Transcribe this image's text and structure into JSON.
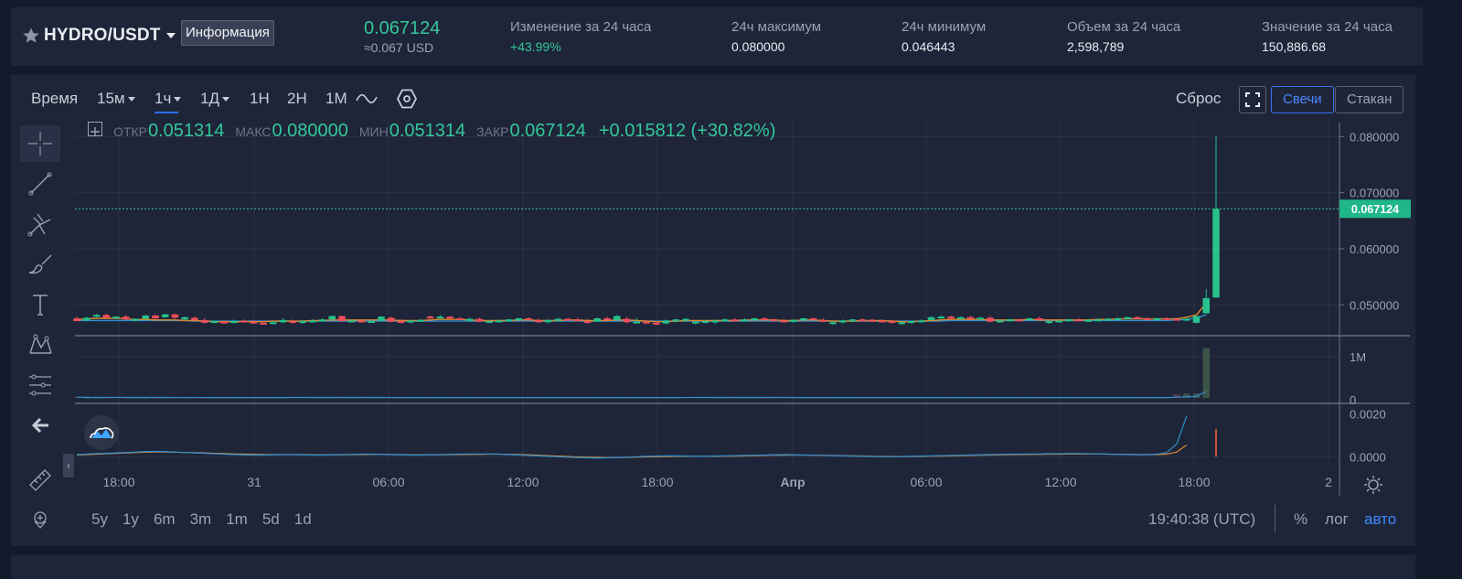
{
  "header": {
    "pair": "HYDRO/USDT",
    "info_button": "Информация",
    "last_price": "0.067124",
    "last_price_usd": "≈0.067 USD",
    "stats": [
      {
        "label": "Изменение за 24 часа",
        "value": "+43.99%",
        "color": "#34c79a"
      },
      {
        "label": "24ч максимум",
        "value": "0.080000",
        "color": "#e9ecf2"
      },
      {
        "label": "24ч минимум",
        "value": "0.046443",
        "color": "#e9ecf2"
      },
      {
        "label": "Объем за 24 часа",
        "value": "2,598,789",
        "color": "#e9ecf2"
      },
      {
        "label": "Значение за 24 часа",
        "value": "150,886.68",
        "color": "#e9ecf2"
      }
    ]
  },
  "toolbar": {
    "time_label": "Время",
    "intervals": [
      "15м",
      "1ч",
      "1Д",
      "1Н",
      "2Н",
      "1М"
    ],
    "active_interval": "1ч",
    "reset": "Сброс",
    "candles": "Свечи",
    "depth": "Стакан"
  },
  "ohlc": {
    "open_label": "ОТКР",
    "open": "0.051314",
    "high_label": "МАКС",
    "high": "0.080000",
    "low_label": "МИН",
    "low": "0.051314",
    "close_label": "ЗАКР",
    "close": "0.067124",
    "change": "+0.015812 (+30.82%)"
  },
  "price_axis": {
    "ticks": [
      "0.080000",
      "0.070000",
      "0.060000",
      "0.050000"
    ],
    "tick_values": [
      0.08,
      0.07,
      0.06,
      0.05
    ],
    "current": "0.067124",
    "current_value": 0.067124
  },
  "volume_axis": {
    "ticks": [
      "1M",
      "0"
    ]
  },
  "macd_axis": {
    "ticks": [
      "0.0020",
      "0.0000"
    ]
  },
  "time_axis": {
    "labels": [
      "18:00",
      "31",
      "06:00",
      "12:00",
      "18:00",
      "Апр",
      "06:00",
      "12:00",
      "18:00",
      "2"
    ]
  },
  "ranges": [
    "5y",
    "1y",
    "6m",
    "3m",
    "1m",
    "5d",
    "1d"
  ],
  "clock": "19:40:38 (UTC)",
  "bottom_options": {
    "percent": "%",
    "log": "лог",
    "auto": "авто"
  },
  "colors": {
    "up": "#26c28c",
    "down": "#f0505c",
    "accent": "#3b72f6",
    "grid": "#2a3146",
    "price_line": "#34c79a"
  },
  "chart_data": {
    "type": "candlestick",
    "interval": "1ч",
    "pair": "HYDRO/USDT",
    "ylim": [
      0.0445,
      0.0825
    ],
    "candles": [
      [
        0.0476,
        0.0479,
        0.0472,
        0.0471
      ],
      [
        0.0472,
        0.0479,
        0.0471,
        0.0477
      ],
      [
        0.0481,
        0.0484,
        0.0478,
        0.0482
      ],
      [
        0.0482,
        0.0484,
        0.0476,
        0.0477
      ],
      [
        0.0477,
        0.048,
        0.0475,
        0.0479
      ],
      [
        0.0479,
        0.0482,
        0.0472,
        0.0474
      ],
      [
        0.0473,
        0.0476,
        0.0471,
        0.0475
      ],
      [
        0.0475,
        0.0482,
        0.0474,
        0.0481
      ],
      [
        0.0481,
        0.0483,
        0.0474,
        0.0476
      ],
      [
        0.0478,
        0.0484,
        0.0477,
        0.0483
      ],
      [
        0.0483,
        0.0484,
        0.0475,
        0.0477
      ],
      [
        0.0474,
        0.0479,
        0.0472,
        0.0478
      ],
      [
        0.0477,
        0.0479,
        0.0471,
        0.0473
      ],
      [
        0.0473,
        0.0476,
        0.0467,
        0.0468
      ],
      [
        0.0468,
        0.0472,
        0.0467,
        0.0471
      ],
      [
        0.047,
        0.0472,
        0.0466,
        0.0468
      ],
      [
        0.0468,
        0.0474,
        0.0467,
        0.0471
      ],
      [
        0.0472,
        0.0474,
        0.0468,
        0.047
      ],
      [
        0.047,
        0.0473,
        0.0466,
        0.0468
      ],
      [
        0.0468,
        0.0471,
        0.0465,
        0.0467
      ],
      [
        0.0467,
        0.0471,
        0.0465,
        0.0469
      ],
      [
        0.0469,
        0.0476,
        0.0467,
        0.0473
      ],
      [
        0.0471,
        0.0474,
        0.0467,
        0.0469
      ],
      [
        0.0469,
        0.0473,
        0.0466,
        0.0471
      ],
      [
        0.0471,
        0.0474,
        0.0469,
        0.0472
      ],
      [
        0.0473,
        0.0476,
        0.047,
        0.0474
      ],
      [
        0.0474,
        0.0481,
        0.0473,
        0.048
      ],
      [
        0.048,
        0.0481,
        0.047,
        0.0471
      ],
      [
        0.0471,
        0.0474,
        0.0469,
        0.0472
      ],
      [
        0.0472,
        0.0474,
        0.0468,
        0.047
      ],
      [
        0.047,
        0.0473,
        0.0468,
        0.0471
      ],
      [
        0.0472,
        0.048,
        0.0471,
        0.0479
      ],
      [
        0.0477,
        0.0479,
        0.0469,
        0.047
      ],
      [
        0.0471,
        0.0474,
        0.0467,
        0.0469
      ],
      [
        0.0469,
        0.0473,
        0.0467,
        0.0472
      ],
      [
        0.0472,
        0.0475,
        0.047,
        0.0473
      ],
      [
        0.0479,
        0.0481,
        0.0477,
        0.0478
      ],
      [
        0.0478,
        0.0482,
        0.0476,
        0.0479
      ],
      [
        0.0479,
        0.048,
        0.0475,
        0.0476
      ],
      [
        0.0476,
        0.0479,
        0.0473,
        0.0475
      ],
      [
        0.0473,
        0.0477,
        0.0471,
        0.0475
      ],
      [
        0.0475,
        0.0477,
        0.0469,
        0.047
      ],
      [
        0.047,
        0.0473,
        0.0468,
        0.0471
      ],
      [
        0.0471,
        0.0474,
        0.0469,
        0.0472
      ],
      [
        0.0472,
        0.0475,
        0.047,
        0.0474
      ],
      [
        0.0474,
        0.0477,
        0.0472,
        0.0476
      ],
      [
        0.0476,
        0.0478,
        0.0472,
        0.0473
      ],
      [
        0.0473,
        0.0476,
        0.0468,
        0.0469
      ],
      [
        0.0469,
        0.0474,
        0.0467,
        0.0473
      ],
      [
        0.0473,
        0.0477,
        0.0471,
        0.0475
      ],
      [
        0.0475,
        0.0477,
        0.0472,
        0.0474
      ],
      [
        0.0474,
        0.0477,
        0.0471,
        0.0473
      ],
      [
        0.0471,
        0.0475,
        0.0466,
        0.047
      ],
      [
        0.047,
        0.0477,
        0.0469,
        0.0476
      ],
      [
        0.0476,
        0.0479,
        0.0471,
        0.0473
      ],
      [
        0.0473,
        0.0482,
        0.0472,
        0.048
      ],
      [
        0.0475,
        0.0479,
        0.0467,
        0.0469
      ],
      [
        0.0469,
        0.0476,
        0.0467,
        0.047
      ],
      [
        0.047,
        0.0473,
        0.0466,
        0.0468
      ],
      [
        0.0468,
        0.0471,
        0.0464,
        0.0467
      ],
      [
        0.0467,
        0.0474,
        0.0465,
        0.0472
      ],
      [
        0.0472,
        0.0475,
        0.0469,
        0.0474
      ],
      [
        0.0474,
        0.0477,
        0.047,
        0.0475
      ],
      [
        0.0468,
        0.0471,
        0.0465,
        0.047
      ],
      [
        0.047,
        0.0473,
        0.0467,
        0.0471
      ],
      [
        0.0469,
        0.0474,
        0.0466,
        0.0472
      ],
      [
        0.0472,
        0.0476,
        0.0471,
        0.0474
      ],
      [
        0.0474,
        0.0476,
        0.047,
        0.0472
      ],
      [
        0.0472,
        0.0476,
        0.047,
        0.0474
      ],
      [
        0.0474,
        0.0477,
        0.0472,
        0.0476
      ],
      [
        0.0476,
        0.0478,
        0.0473,
        0.0474
      ],
      [
        0.0474,
        0.0476,
        0.0471,
        0.0472
      ],
      [
        0.0472,
        0.0475,
        0.0469,
        0.0471
      ],
      [
        0.0471,
        0.0474,
        0.0468,
        0.0473
      ],
      [
        0.0473,
        0.0477,
        0.0472,
        0.0476
      ],
      [
        0.0476,
        0.0477,
        0.0472,
        0.0473
      ],
      [
        0.0473,
        0.0476,
        0.0469,
        0.047
      ],
      [
        0.0466,
        0.047,
        0.0464,
        0.0469
      ],
      [
        0.0469,
        0.0474,
        0.0467,
        0.0472
      ],
      [
        0.0472,
        0.0475,
        0.047,
        0.0474
      ],
      [
        0.0474,
        0.0476,
        0.0471,
        0.0473
      ],
      [
        0.0473,
        0.0475,
        0.047,
        0.0472
      ],
      [
        0.0472,
        0.0474,
        0.0469,
        0.0471
      ],
      [
        0.0471,
        0.0473,
        0.0467,
        0.0469
      ],
      [
        0.0466,
        0.047,
        0.0464,
        0.0469
      ],
      [
        0.0469,
        0.0472,
        0.0466,
        0.0471
      ],
      [
        0.0471,
        0.0474,
        0.0469,
        0.0472
      ],
      [
        0.0473,
        0.0479,
        0.0472,
        0.0478
      ],
      [
        0.0478,
        0.0481,
        0.0475,
        0.0479
      ],
      [
        0.0479,
        0.0481,
        0.0474,
        0.0476
      ],
      [
        0.0476,
        0.0479,
        0.0473,
        0.0478
      ],
      [
        0.0478,
        0.0481,
        0.0474,
        0.0475
      ],
      [
        0.0475,
        0.0479,
        0.0472,
        0.0477
      ],
      [
        0.0477,
        0.048,
        0.0469,
        0.047
      ],
      [
        0.047,
        0.0474,
        0.0468,
        0.0472
      ],
      [
        0.0472,
        0.0475,
        0.047,
        0.0474
      ],
      [
        0.0474,
        0.0476,
        0.0471,
        0.0473
      ],
      [
        0.0473,
        0.0477,
        0.0471,
        0.0476
      ],
      [
        0.0476,
        0.0479,
        0.0473,
        0.0475
      ],
      [
        0.0468,
        0.0472,
        0.0466,
        0.0471
      ],
      [
        0.0471,
        0.0473,
        0.0469,
        0.0472
      ],
      [
        0.0472,
        0.0475,
        0.047,
        0.0474
      ],
      [
        0.0474,
        0.0476,
        0.0471,
        0.0472
      ],
      [
        0.0472,
        0.0475,
        0.047,
        0.0473
      ],
      [
        0.0473,
        0.0476,
        0.0471,
        0.0474
      ],
      [
        0.0474,
        0.0477,
        0.0472,
        0.0475
      ],
      [
        0.0475,
        0.0478,
        0.0472,
        0.0476
      ],
      [
        0.0476,
        0.0479,
        0.0474,
        0.0478
      ],
      [
        0.0478,
        0.048,
        0.0475,
        0.0476
      ],
      [
        0.0476,
        0.0478,
        0.0472,
        0.0474
      ],
      [
        0.0474,
        0.0477,
        0.0472,
        0.0476
      ],
      [
        0.0476,
        0.0478,
        0.0473,
        0.0475
      ],
      [
        0.0475,
        0.0477,
        0.0472,
        0.0474
      ],
      [
        0.0474,
        0.0477,
        0.0472,
        0.0475
      ],
      [
        0.0468,
        0.0481,
        0.0467,
        0.048
      ],
      [
        0.0485,
        0.0528,
        0.0484,
        0.0512
      ],
      [
        0.0513,
        0.08,
        0.0513,
        0.0671
      ]
    ],
    "ma_fast": [
      0.0474,
      0.0475,
      0.0476,
      0.0476,
      0.0476,
      0.0475,
      0.0474,
      0.0474,
      0.0473,
      0.0473,
      0.0473,
      0.0472,
      0.0472,
      0.0471,
      0.047,
      0.047,
      0.047,
      0.047,
      0.047,
      0.047,
      0.0471,
      0.0471,
      0.0471,
      0.0471,
      0.0472,
      0.0472,
      0.0473,
      0.0473,
      0.0473,
      0.0473,
      0.0473,
      0.0473,
      0.0473,
      0.0472,
      0.0472,
      0.0472,
      0.0473,
      0.0474,
      0.0474,
      0.0474,
      0.0473,
      0.0472,
      0.0472,
      0.0472,
      0.0472,
      0.0473,
      0.0473,
      0.0472,
      0.0472,
      0.0472,
      0.0473,
      0.0473,
      0.0472,
      0.0472,
      0.0472,
      0.0473,
      0.0473,
      0.0472,
      0.0471,
      0.047,
      0.047,
      0.0471,
      0.0472,
      0.0472,
      0.0472,
      0.0472,
      0.0472,
      0.0472,
      0.0473,
      0.0473,
      0.0473,
      0.0473,
      0.0472,
      0.0472,
      0.0473,
      0.0473,
      0.0472,
      0.0471,
      0.0471,
      0.0471,
      0.0472,
      0.0472,
      0.0472,
      0.0471,
      0.047,
      0.047,
      0.0471,
      0.0472,
      0.0473,
      0.0474,
      0.0474,
      0.0474,
      0.0474,
      0.0473,
      0.0473,
      0.0473,
      0.0473,
      0.0474,
      0.0473,
      0.0473,
      0.0473,
      0.0473,
      0.0473,
      0.0473,
      0.0474,
      0.0474,
      0.0475,
      0.0475,
      0.0475,
      0.0475,
      0.0475,
      0.0475,
      0.0475,
      0.0478,
      0.0482,
      0.0503
    ],
    "ma_slow": [
      0.0472,
      0.0472,
      0.0472,
      0.0472,
      0.0472,
      0.0472,
      0.0472,
      0.0472,
      0.0472,
      0.0472,
      0.0472,
      0.0472,
      0.0471,
      0.0471,
      0.0471,
      0.0471,
      0.0471,
      0.0471,
      0.0471,
      0.0471,
      0.0471,
      0.0471,
      0.0471,
      0.0471,
      0.0471,
      0.0471,
      0.0471,
      0.0471,
      0.0471,
      0.0471,
      0.0471,
      0.0471,
      0.0471,
      0.0471,
      0.0471,
      0.0471,
      0.0471,
      0.0471,
      0.0471,
      0.0471,
      0.0471,
      0.0471,
      0.0471,
      0.0471,
      0.0471,
      0.0471,
      0.0471,
      0.0471,
      0.0471,
      0.0471,
      0.0471,
      0.0471,
      0.0471,
      0.0471,
      0.0471,
      0.0471,
      0.0471,
      0.0471,
      0.0471,
      0.0471,
      0.0471,
      0.0471,
      0.0471,
      0.0471,
      0.0471,
      0.0471,
      0.0471,
      0.0471,
      0.0471,
      0.0471,
      0.0471,
      0.0471,
      0.0471,
      0.0471,
      0.0471,
      0.0471,
      0.0471,
      0.0471,
      0.0471,
      0.0471,
      0.0471,
      0.0471,
      0.0471,
      0.0471,
      0.0471,
      0.0471,
      0.0471,
      0.0471,
      0.0471,
      0.0472,
      0.0472,
      0.0472,
      0.0472,
      0.0472,
      0.0472,
      0.0472,
      0.0472,
      0.0472,
      0.0472,
      0.0472,
      0.0472,
      0.0472,
      0.0472,
      0.0472,
      0.0472,
      0.0472,
      0.0472,
      0.0472,
      0.0472,
      0.0472,
      0.0472,
      0.0472,
      0.0473,
      0.0474,
      0.0477,
      0.0482
    ],
    "volumes": [
      0.02,
      0.01,
      0.01,
      0.01,
      0.02,
      0.01,
      0.01,
      0.01,
      0.01,
      0.01,
      0.01,
      0.01,
      0.01,
      0.01,
      0.01,
      0.01,
      0.01,
      0.01,
      0.01,
      0.01,
      0.01,
      0.01,
      0.03,
      0.02,
      0.01,
      0.01,
      0.01,
      0.01,
      0.01,
      0.01,
      0.01,
      0.01,
      0.01,
      0.01,
      0.01,
      0.01,
      0.01,
      0.01,
      0.01,
      0.01,
      0.01,
      0.01,
      0.01,
      0.01,
      0.01,
      0.01,
      0.01,
      0.01,
      0.01,
      0.01,
      0.01,
      0.01,
      0.01,
      0.01,
      0.01,
      0.01,
      0.01,
      0.01,
      0.01,
      0.01,
      0.01,
      0.01,
      0.02,
      0.02,
      0.02,
      0.01,
      0.01,
      0.01,
      0.01,
      0.01,
      0.01,
      0.01,
      0.01,
      0.01,
      0.01,
      0.01,
      0.01,
      0.01,
      0.01,
      0.01,
      0.01,
      0.01,
      0.01,
      0.01,
      0.01,
      0.01,
      0.01,
      0.01,
      0.01,
      0.01,
      0.01,
      0.01,
      0.01,
      0.01,
      0.01,
      0.01,
      0.01,
      0.01,
      0.01,
      0.01,
      0.01,
      0.01,
      0.01,
      0.01,
      0.01,
      0.01,
      0.01,
      0.01,
      0.01,
      0.01,
      0.01,
      0.01,
      0.1,
      0.12,
      0.12,
      1.38
    ],
    "volume_ylim": [
      0,
      1.45
    ],
    "macd_line": [
      0.0001,
      0.00012,
      0.00015,
      0.00016,
      0.00018,
      0.0002,
      0.00022,
      0.00024,
      0.00025,
      0.00024,
      0.00022,
      0.0002,
      0.00018,
      0.00016,
      0.00014,
      0.00012,
      0.0001,
      9e-05,
      8e-05,
      8e-05,
      9e-05,
      0.0001,
      0.0001,
      9e-05,
      8e-05,
      8e-05,
      9e-05,
      0.0001,
      0.00011,
      0.00012,
      0.00012,
      0.00011,
      0.0001,
      9e-05,
      8e-05,
      8e-05,
      9e-05,
      0.0001,
      0.00011,
      0.00012,
      0.00013,
      0.00013,
      0.00013,
      0.00012,
      0.0001,
      8e-05,
      6e-05,
      4e-05,
      2e-05,
      0.0,
      -2e-05,
      -4e-05,
      -5e-05,
      -6e-05,
      -5e-05,
      -4e-05,
      -2e-05,
      0.0,
      2e-05,
      3e-05,
      4e-05,
      4e-05,
      3e-05,
      2e-05,
      2e-05,
      3e-05,
      4e-05,
      5e-05,
      6e-05,
      7e-05,
      8e-05,
      9e-05,
      0.0001,
      9e-05,
      8e-05,
      7e-05,
      6e-05,
      5e-05,
      4e-05,
      3e-05,
      2e-05,
      1e-05,
      0.0,
      0.0,
      1e-05,
      2e-05,
      3e-05,
      4e-05,
      5e-05,
      6e-05,
      7e-05,
      8e-05,
      9e-05,
      0.0001,
      0.00011,
      0.00012,
      0.00012,
      0.00013,
      0.00013,
      0.00014,
      0.00014,
      0.00015,
      0.00015,
      0.00014,
      0.00013,
      0.00012,
      0.00011,
      0.0001,
      9e-05,
      0.0001,
      0.00012,
      0.0002,
      0.0006,
      0.0019
    ],
    "macd_signal": [
      8e-05,
      0.0001,
      0.00012,
      0.00014,
      0.00016,
      0.00018,
      0.0002,
      0.00021,
      0.00022,
      0.00022,
      0.00021,
      0.0002,
      0.00019,
      0.00018,
      0.00016,
      0.00015,
      0.00013,
      0.00012,
      0.00011,
      0.0001,
      0.0001,
      0.0001,
      0.0001,
      0.0001,
      9e-05,
      9e-05,
      9e-05,
      9e-05,
      0.0001,
      0.0001,
      0.00011,
      0.00011,
      0.0001,
      0.0001,
      9e-05,
      9e-05,
      9e-05,
      9e-05,
      0.0001,
      0.0001,
      0.00011,
      0.00011,
      0.00012,
      0.00012,
      0.00011,
      0.0001,
      9e-05,
      7e-05,
      5e-05,
      3e-05,
      1e-05,
      -1e-05,
      -2e-05,
      -3e-05,
      -4e-05,
      -4e-05,
      -3e-05,
      -2e-05,
      -1e-05,
      0.0,
      1e-05,
      2e-05,
      2e-05,
      2e-05,
      2e-05,
      2e-05,
      3e-05,
      3e-05,
      4e-05,
      5e-05,
      6e-05,
      7e-05,
      7e-05,
      8e-05,
      8e-05,
      7e-05,
      7e-05,
      6e-05,
      5e-05,
      4e-05,
      3e-05,
      2e-05,
      1e-05,
      1e-05,
      1e-05,
      1e-05,
      2e-05,
      3e-05,
      3e-05,
      4e-05,
      5e-05,
      6e-05,
      7e-05,
      8e-05,
      9e-05,
      0.0001,
      0.0001,
      0.00011,
      0.00011,
      0.00012,
      0.00012,
      0.00013,
      0.00013,
      0.00013,
      0.00013,
      0.00012,
      0.00011,
      0.00011,
      0.0001,
      0.0001,
      0.0001,
      0.00012,
      0.00022,
      0.00055
    ],
    "macd_ylim": [
      -0.0002,
      0.0022
    ]
  }
}
